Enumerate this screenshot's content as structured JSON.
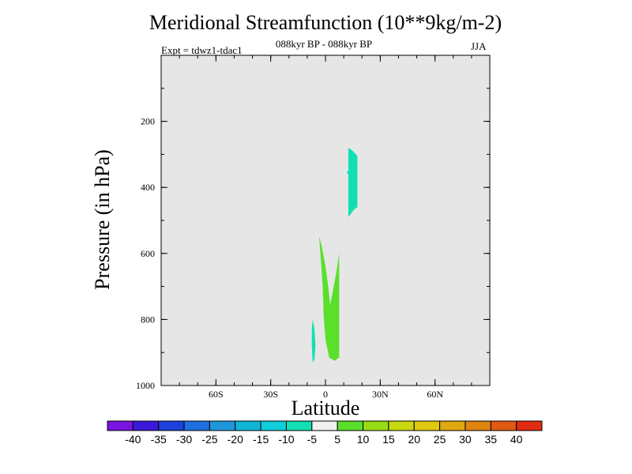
{
  "chart_data": {
    "type": "contour",
    "title": "Meridional Streamfunction (10**9kg/m-2)",
    "subtitle": "088kyr BP - 088kyr BP",
    "experiment": "Expt = tdwz1-tdac1",
    "season": "JJA",
    "xlabel": "Latitude",
    "ylabel": "Pressure (in hPa)",
    "xlim": [
      -90,
      90
    ],
    "ylim": [
      1000,
      0
    ],
    "y_inverted": true,
    "background_color": "#e6e6e6",
    "x_ticks": [
      {
        "value": -60,
        "label": "60S"
      },
      {
        "value": -30,
        "label": "30S"
      },
      {
        "value": 0,
        "label": "0"
      },
      {
        "value": 30,
        "label": "30N"
      },
      {
        "value": 60,
        "label": "60N"
      }
    ],
    "y_ticks": [
      {
        "value": 200,
        "label": "200"
      },
      {
        "value": 400,
        "label": "400"
      },
      {
        "value": 600,
        "label": "600"
      },
      {
        "value": 800,
        "label": "800"
      },
      {
        "value": 1000,
        "label": "1000"
      }
    ],
    "colorbar": {
      "levels": [
        -40,
        -35,
        -30,
        -25,
        -20,
        -15,
        -10,
        -5,
        5,
        10,
        15,
        20,
        25,
        30,
        35,
        40
      ],
      "labels": [
        "-40",
        "-35",
        "-30",
        "-25",
        "-20",
        "-15",
        "-10",
        "-5",
        "5",
        "10",
        "15",
        "20",
        "25",
        "30",
        "35",
        "40"
      ],
      "colors": [
        "#7a14e0",
        "#3a1ad8",
        "#1e40dc",
        "#1e6fe0",
        "#1f96dc",
        "#10b6d8",
        "#10cedc",
        "#12e0b2",
        "#f0f0f0",
        "#5ae02a",
        "#98dc14",
        "#c8d810",
        "#e0c80e",
        "#e0a810",
        "#e08410",
        "#e05a10",
        "#e02c10"
      ]
    },
    "regions": [
      {
        "name": "band -10 to -5",
        "color": "#12e0b2",
        "points": [
          [
            12.5,
            280
          ],
          [
            15,
            290
          ],
          [
            17.5,
            305
          ],
          [
            17.5,
            460
          ],
          [
            16,
            465
          ],
          [
            12.5,
            490
          ],
          [
            12.5,
            360
          ],
          [
            11.5,
            355
          ],
          [
            12.5,
            350
          ]
        ]
      },
      {
        "name": "band 5 to 10",
        "color": "#5ae02a",
        "points": [
          [
            -3.5,
            548
          ],
          [
            -2,
            580
          ],
          [
            0,
            640
          ],
          [
            1.5,
            700
          ],
          [
            2.5,
            755
          ],
          [
            3.5,
            730
          ],
          [
            6,
            655
          ],
          [
            7.5,
            600
          ],
          [
            7.5,
            915
          ],
          [
            5,
            925
          ],
          [
            2,
            915
          ],
          [
            0,
            860
          ],
          [
            -1,
            790
          ],
          [
            -1.5,
            700
          ],
          [
            -2.5,
            620
          ]
        ]
      },
      {
        "name": "band -10 to -5",
        "color": "#12e0b2",
        "points": [
          [
            -7,
            800
          ],
          [
            -6,
            830
          ],
          [
            -5.5,
            880
          ],
          [
            -6,
            920
          ],
          [
            -7,
            930
          ],
          [
            -7.5,
            880
          ],
          [
            -7.5,
            830
          ]
        ]
      }
    ]
  }
}
